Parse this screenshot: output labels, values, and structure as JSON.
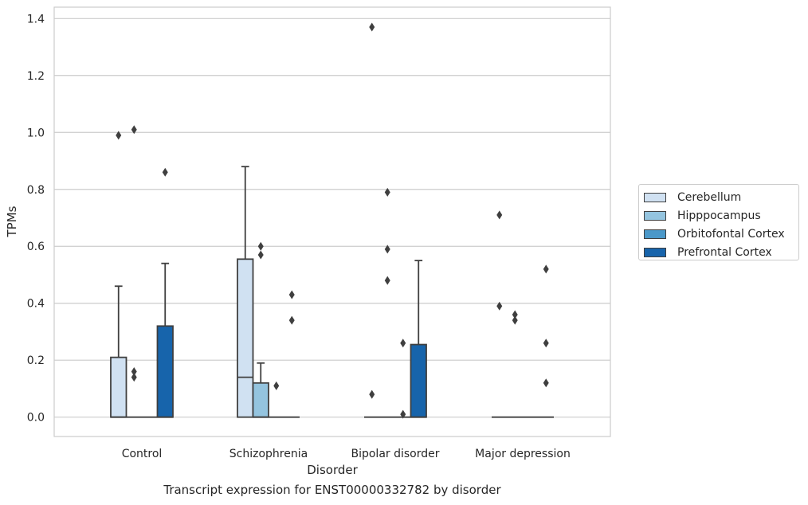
{
  "caption": "Transcript expression for ENST00000332782 by disorder",
  "colors": {
    "Cerebellum": "#d0e1f2",
    "Hipppocampus": "#94c4df",
    "Orbitofontal Cortex": "#4a98c9",
    "Prefrontal Cortex": "#1764ab",
    "edge": "#3f3f3f",
    "grid": "#cccccc"
  },
  "chart_data": {
    "type": "box",
    "title": "",
    "xlabel": "Disorder",
    "ylabel": "TPMs",
    "ylim": [
      -0.068,
      1.44
    ],
    "yticks": [
      0.0,
      0.2,
      0.4,
      0.6,
      0.8,
      1.0,
      1.2,
      1.4
    ],
    "ytick_labels": [
      "0.0",
      "0.2",
      "0.4",
      "0.6",
      "0.8",
      "1.0",
      "1.2",
      "1.4"
    ],
    "grid": "horizontal",
    "legend_position": "right",
    "categories": [
      "Control",
      "Schizophrenia",
      "Bipolar disorder",
      "Major depression"
    ],
    "series": [
      {
        "name": "Cerebellum",
        "boxes": [
          {
            "whislo": 0.0,
            "q1": 0.0,
            "med": 0.0,
            "q3": 0.21,
            "whishi": 0.46,
            "fliers": [
              0.99
            ]
          },
          {
            "whislo": 0.0,
            "q1": 0.0,
            "med": 0.14,
            "q3": 0.555,
            "whishi": 0.88,
            "fliers": []
          },
          {
            "whislo": 0.0,
            "q1": 0.0,
            "med": 0.0,
            "q3": 0.0,
            "whishi": 0.0,
            "fliers": [
              1.37,
              0.08
            ]
          },
          {
            "whislo": 0.0,
            "q1": 0.0,
            "med": 0.0,
            "q3": 0.0,
            "whishi": 0.0,
            "fliers": [
              0.71,
              0.39
            ]
          }
        ]
      },
      {
        "name": "Hipppocampus",
        "boxes": [
          {
            "whislo": 0.0,
            "q1": 0.0,
            "med": 0.0,
            "q3": 0.0,
            "whishi": 0.0,
            "fliers": [
              1.01,
              0.16,
              0.14
            ]
          },
          {
            "whislo": 0.0,
            "q1": 0.0,
            "med": 0.0,
            "q3": 0.12,
            "whishi": 0.19,
            "fliers": [
              0.6,
              0.57
            ]
          },
          {
            "whislo": 0.0,
            "q1": 0.0,
            "med": 0.0,
            "q3": 0.0,
            "whishi": 0.0,
            "fliers": [
              0.79,
              0.59,
              0.48
            ]
          },
          {
            "whislo": 0.0,
            "q1": 0.0,
            "med": 0.0,
            "q3": 0.0,
            "whishi": 0.0,
            "fliers": [
              0.36,
              0.34
            ]
          }
        ]
      },
      {
        "name": "Orbitofontal Cortex",
        "boxes": [
          {
            "whislo": 0.0,
            "q1": 0.0,
            "med": 0.0,
            "q3": 0.0,
            "whishi": 0.0,
            "fliers": []
          },
          {
            "whislo": 0.0,
            "q1": 0.0,
            "med": 0.0,
            "q3": 0.0,
            "whishi": 0.0,
            "fliers": [
              0.11
            ]
          },
          {
            "whislo": 0.0,
            "q1": 0.0,
            "med": 0.0,
            "q3": 0.0,
            "whishi": 0.0,
            "fliers": [
              0.26,
              0.01
            ]
          },
          {
            "whislo": 0.0,
            "q1": 0.0,
            "med": 0.0,
            "q3": 0.0,
            "whishi": 0.0,
            "fliers": []
          }
        ]
      },
      {
        "name": "Prefrontal Cortex",
        "boxes": [
          {
            "whislo": 0.0,
            "q1": 0.0,
            "med": 0.0,
            "q3": 0.32,
            "whishi": 0.54,
            "fliers": [
              0.86
            ]
          },
          {
            "whislo": 0.0,
            "q1": 0.0,
            "med": 0.0,
            "q3": 0.0,
            "whishi": 0.0,
            "fliers": [
              0.43,
              0.34
            ]
          },
          {
            "whislo": 0.0,
            "q1": 0.0,
            "med": 0.0,
            "q3": 0.255,
            "whishi": 0.55,
            "fliers": []
          },
          {
            "whislo": 0.0,
            "q1": 0.0,
            "med": 0.0,
            "q3": 0.0,
            "whishi": 0.0,
            "fliers": [
              0.52,
              0.26,
              0.12
            ]
          }
        ]
      }
    ]
  }
}
